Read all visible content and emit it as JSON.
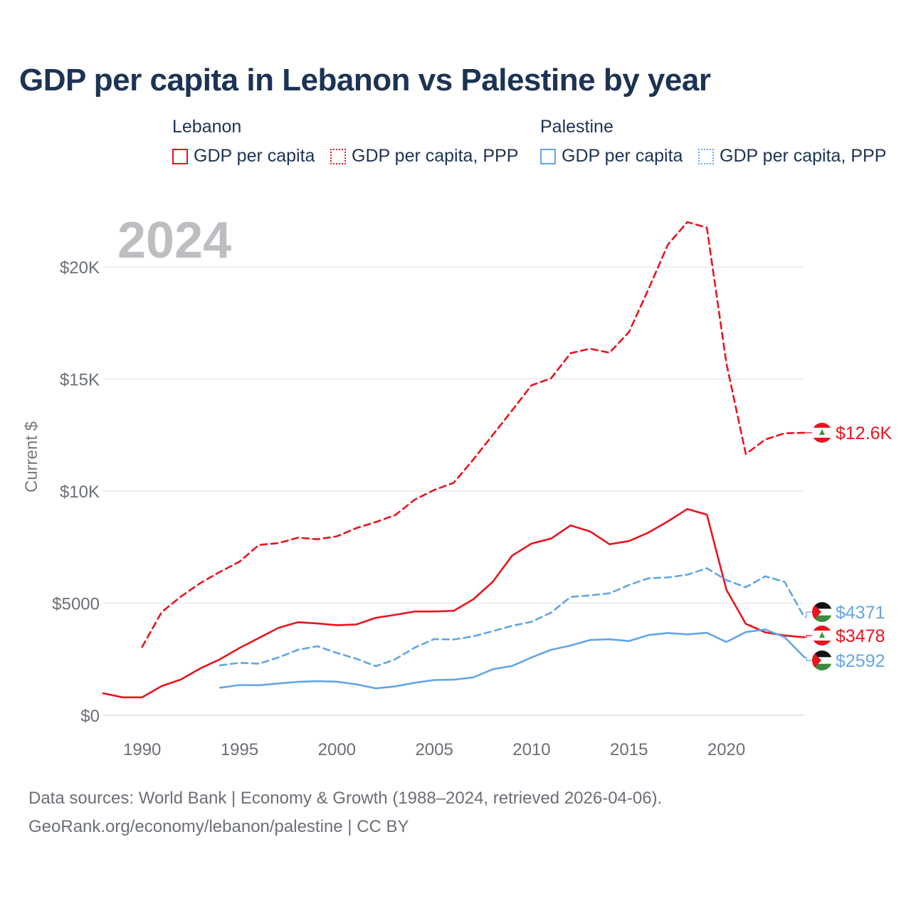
{
  "title": "GDP per capita in Lebanon vs Palestine by year",
  "legend": {
    "groups": [
      {
        "name": "Lebanon",
        "items": [
          "GDP per capita",
          "GDP per capita, PPP"
        ]
      },
      {
        "name": "Palestine",
        "items": [
          "GDP per capita",
          "GDP per capita, PPP"
        ]
      }
    ]
  },
  "colors": {
    "lebanon": "#e8141e",
    "palestine": "#62a6e6"
  },
  "year_watermark": "2024",
  "footer": {
    "line1": "Data sources: World Bank | Economy & Growth (1988–2024, retrieved 2026-04-06).",
    "line2": "GeoRank.org/economy/lebanon/palestine | CC BY"
  },
  "chart_data": {
    "type": "line",
    "title": "GDP per capita in Lebanon vs Palestine by year",
    "xlabel": "",
    "ylabel": "Current $",
    "xlim": [
      1988,
      2024
    ],
    "ylim": [
      0,
      22500
    ],
    "yticks": [
      0,
      5000,
      10000,
      15000,
      20000
    ],
    "ytick_labels": [
      "$0",
      "$5000",
      "$10K",
      "$15K",
      "$20K"
    ],
    "xticks": [
      1990,
      1995,
      2000,
      2005,
      2010,
      2015,
      2020
    ],
    "xtick_labels": [
      "1990",
      "1995",
      "2000",
      "2005",
      "2010",
      "2015",
      "2020"
    ],
    "grid": true,
    "series": [
      {
        "name": "Lebanon GDP per capita",
        "style": "solid",
        "color": "#e8141e",
        "x": [
          1988,
          1989,
          1990,
          1991,
          1992,
          1993,
          1994,
          1995,
          1996,
          1997,
          1998,
          1999,
          2000,
          2001,
          2002,
          2003,
          2004,
          2005,
          2006,
          2007,
          2008,
          2009,
          2010,
          2011,
          2012,
          2013,
          2014,
          2015,
          2016,
          2017,
          2018,
          2019,
          2020,
          2021,
          2022,
          2023,
          2024
        ],
        "values": [
          980,
          800,
          800,
          1300,
          1600,
          2100,
          2500,
          3000,
          3450,
          3900,
          4150,
          4100,
          4020,
          4050,
          4350,
          4480,
          4630,
          4630,
          4660,
          5170,
          5950,
          7120,
          7660,
          7880,
          8470,
          8200,
          7630,
          7770,
          8150,
          8650,
          9200,
          8950,
          5600,
          4080,
          3700,
          3560,
          3478
        ]
      },
      {
        "name": "Lebanon GDP per capita, PPP",
        "style": "dashed",
        "color": "#e8141e",
        "x": [
          1990,
          1991,
          1992,
          1993,
          1994,
          1995,
          1996,
          1997,
          1998,
          1999,
          2000,
          2001,
          2002,
          2003,
          2004,
          2005,
          2006,
          2007,
          2008,
          2009,
          2010,
          2011,
          2012,
          2013,
          2014,
          2015,
          2016,
          2017,
          2018,
          2019,
          2020,
          2021,
          2022,
          2023,
          2024
        ],
        "values": [
          3050,
          4600,
          5300,
          5900,
          6400,
          6850,
          7600,
          7680,
          7920,
          7850,
          7980,
          8350,
          8620,
          8930,
          9620,
          10050,
          10370,
          11400,
          12500,
          13600,
          14720,
          15030,
          16150,
          16350,
          16170,
          17100,
          19000,
          21000,
          22000,
          21750,
          15700,
          11650,
          12300,
          12580,
          12600
        ]
      },
      {
        "name": "Palestine GDP per capita",
        "style": "solid",
        "color": "#62a6e6",
        "x": [
          1994,
          1995,
          1996,
          1997,
          1998,
          1999,
          2000,
          2001,
          2002,
          2003,
          2004,
          2005,
          2006,
          2007,
          2008,
          2009,
          2010,
          2011,
          2012,
          2013,
          2014,
          2015,
          2016,
          2017,
          2018,
          2019,
          2020,
          2021,
          2022,
          2023,
          2024
        ],
        "values": [
          1230,
          1350,
          1340,
          1420,
          1490,
          1520,
          1500,
          1380,
          1200,
          1290,
          1450,
          1570,
          1590,
          1690,
          2050,
          2200,
          2580,
          2920,
          3110,
          3360,
          3390,
          3310,
          3580,
          3670,
          3610,
          3680,
          3270,
          3710,
          3830,
          3480,
          2592
        ]
      },
      {
        "name": "Palestine GDP per capita, PPP",
        "style": "dashed",
        "color": "#62a6e6",
        "x": [
          1994,
          1995,
          1996,
          1997,
          1998,
          1999,
          2000,
          2001,
          2002,
          2003,
          2004,
          2005,
          2006,
          2007,
          2008,
          2009,
          2010,
          2011,
          2012,
          2013,
          2014,
          2015,
          2016,
          2017,
          2018,
          2019,
          2020,
          2021,
          2022,
          2023,
          2024
        ],
        "values": [
          2230,
          2340,
          2300,
          2580,
          2920,
          3080,
          2780,
          2520,
          2190,
          2500,
          3020,
          3400,
          3380,
          3520,
          3750,
          3990,
          4170,
          4580,
          5280,
          5350,
          5440,
          5810,
          6110,
          6150,
          6270,
          6560,
          6030,
          5710,
          6200,
          5950,
          4371
        ]
      }
    ],
    "end_labels": [
      {
        "series": "Lebanon GDP per capita, PPP",
        "text": "$12.6K",
        "flag": "lebanon-flag-icon"
      },
      {
        "series": "Palestine GDP per capita, PPP",
        "text": "$4371",
        "flag": "palestine-flag-icon"
      },
      {
        "series": "Lebanon GDP per capita",
        "text": "$3478",
        "flag": "lebanon-flag-icon"
      },
      {
        "series": "Palestine GDP per capita",
        "text": "$2592",
        "flag": "palestine-flag-icon"
      }
    ]
  }
}
